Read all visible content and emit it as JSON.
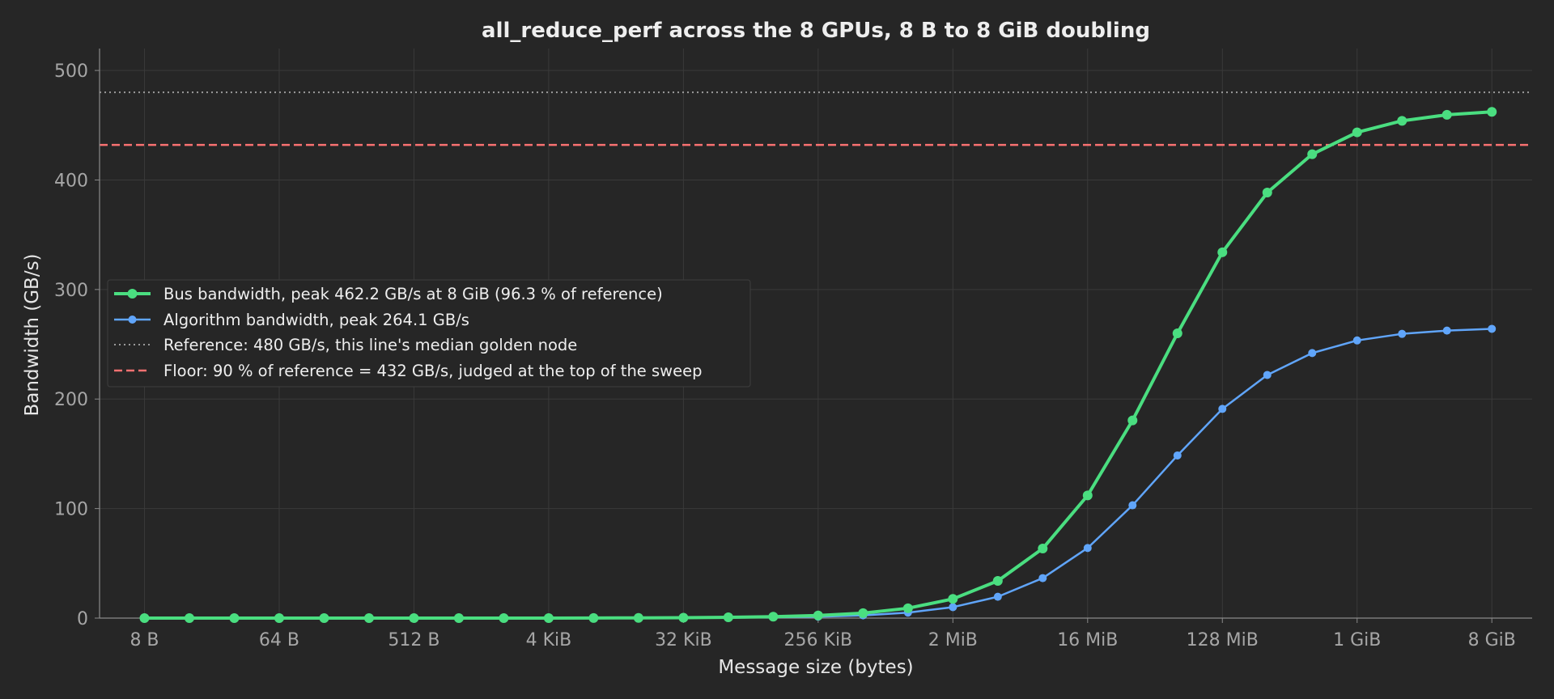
{
  "chart_data": {
    "type": "line",
    "title": "all_reduce_perf across the 8 GPUs, 8 B to 8 GiB doubling",
    "xlabel": "Message size (bytes)",
    "ylabel": "Bandwidth (GB/s)",
    "x_scale": "log2",
    "x_unit": "bytes",
    "xlim": [
      4,
      16000000000
    ],
    "ylim": [
      0,
      520
    ],
    "grid": true,
    "legend_position": "center-left",
    "x_ticks": [
      {
        "value": 8,
        "label": "8 B"
      },
      {
        "value": 64,
        "label": "64 B"
      },
      {
        "value": 512,
        "label": "512 B"
      },
      {
        "value": 4096,
        "label": "4 KiB"
      },
      {
        "value": 32768,
        "label": "32 KiB"
      },
      {
        "value": 262144,
        "label": "256 KiB"
      },
      {
        "value": 2097152,
        "label": "2 MiB"
      },
      {
        "value": 16777216,
        "label": "16 MiB"
      },
      {
        "value": 134217728,
        "label": "128 MiB"
      },
      {
        "value": 1073741824,
        "label": "1 GiB"
      },
      {
        "value": 8589934592,
        "label": "8 GiB"
      }
    ],
    "y_ticks": [
      0,
      100,
      200,
      300,
      400,
      500
    ],
    "x": [
      8,
      16,
      32,
      64,
      128,
      256,
      512,
      1024,
      2048,
      4096,
      8192,
      16384,
      32768,
      65536,
      131072,
      262144,
      524288,
      1048576,
      2097152,
      4194304,
      8388608,
      16777216,
      33554432,
      67108864,
      134217728,
      268435456,
      536870912,
      1073741824,
      2147483648,
      4294967296,
      8589934592
    ],
    "series": [
      {
        "name": "Bus bandwidth, peak 462.2 GB/s at 8 GiB (96.3 % of reference)",
        "color": "#4ade80",
        "values": [
          0.0,
          0.0,
          0.0,
          0.0,
          0.0,
          0.0,
          0.0,
          0.0,
          0.0,
          0.0,
          0.1,
          0.2,
          0.4,
          0.7,
          1.3,
          2.4,
          4.5,
          9.0,
          17.5,
          34.0,
          63.5,
          112.0,
          180.5,
          260.0,
          334.0,
          388.5,
          423.5,
          443.5,
          454.0,
          459.5,
          462.2
        ]
      },
      {
        "name": "Algorithm bandwidth, peak 264.1 GB/s",
        "color": "#60a5fa",
        "values": [
          0.0,
          0.0,
          0.0,
          0.0,
          0.0,
          0.0,
          0.0,
          0.0,
          0.0,
          0.0,
          0.0,
          0.1,
          0.2,
          0.4,
          0.7,
          1.3,
          2.5,
          5.0,
          10.0,
          19.5,
          36.5,
          64.0,
          103.0,
          148.5,
          191.0,
          222.0,
          242.0,
          253.5,
          259.5,
          262.5,
          264.1
        ]
      }
    ],
    "reference_lines": [
      {
        "name": "Reference: 480 GB/s, this line's median golden node",
        "value": 480,
        "style": "dotted",
        "color": "#9a9a9a"
      },
      {
        "name": "Floor: 90 % of reference = 432 GB/s, judged at the top of the sweep",
        "value": 432,
        "style": "dashed",
        "color": "#f87171"
      }
    ]
  }
}
